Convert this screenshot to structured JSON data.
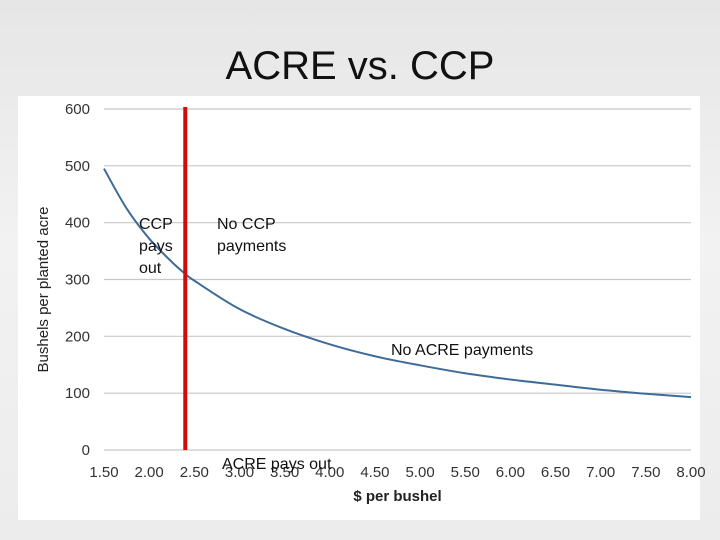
{
  "slide": {
    "title": "ACRE vs. CCP"
  },
  "annotations": {
    "ccp_pays_out": "CCP\npays\nout",
    "no_ccp_payments": "No CCP\npayments",
    "no_acre_payments": "No ACRE payments",
    "acre_pays_out": "ACRE pays out"
  },
  "colors": {
    "curve": "#3f6b99",
    "marker": "#d10a0a",
    "grid": "#c8c8c8"
  },
  "chart_data": {
    "type": "line",
    "title": "",
    "xlabel": "$ per bushel",
    "ylabel": "Bushels per planted acre",
    "xlim": [
      1.5,
      8.0
    ],
    "ylim": [
      0,
      600
    ],
    "x_ticks": [
      "1.50",
      "2.00",
      "2.50",
      "3.00",
      "3.50",
      "4.00",
      "4.50",
      "5.00",
      "5.50",
      "6.00",
      "6.50",
      "7.00",
      "7.50",
      "8.00"
    ],
    "y_ticks": [
      "0",
      "100",
      "200",
      "300",
      "400",
      "500",
      "600"
    ],
    "grid": "horizontal",
    "series": [
      {
        "name": "",
        "x": [
          1.5,
          1.75,
          2.0,
          2.25,
          2.4,
          2.5,
          3.0,
          3.5,
          4.0,
          4.5,
          5.0,
          5.5,
          6.0,
          6.5,
          7.0,
          7.5,
          8.0
        ],
        "y": [
          495,
          425,
          372,
          331,
          310,
          298,
          248,
          213,
          186,
          165,
          149,
          135,
          124,
          115,
          106,
          99,
          93
        ]
      }
    ],
    "vertical_marker": {
      "x": 2.4
    }
  }
}
